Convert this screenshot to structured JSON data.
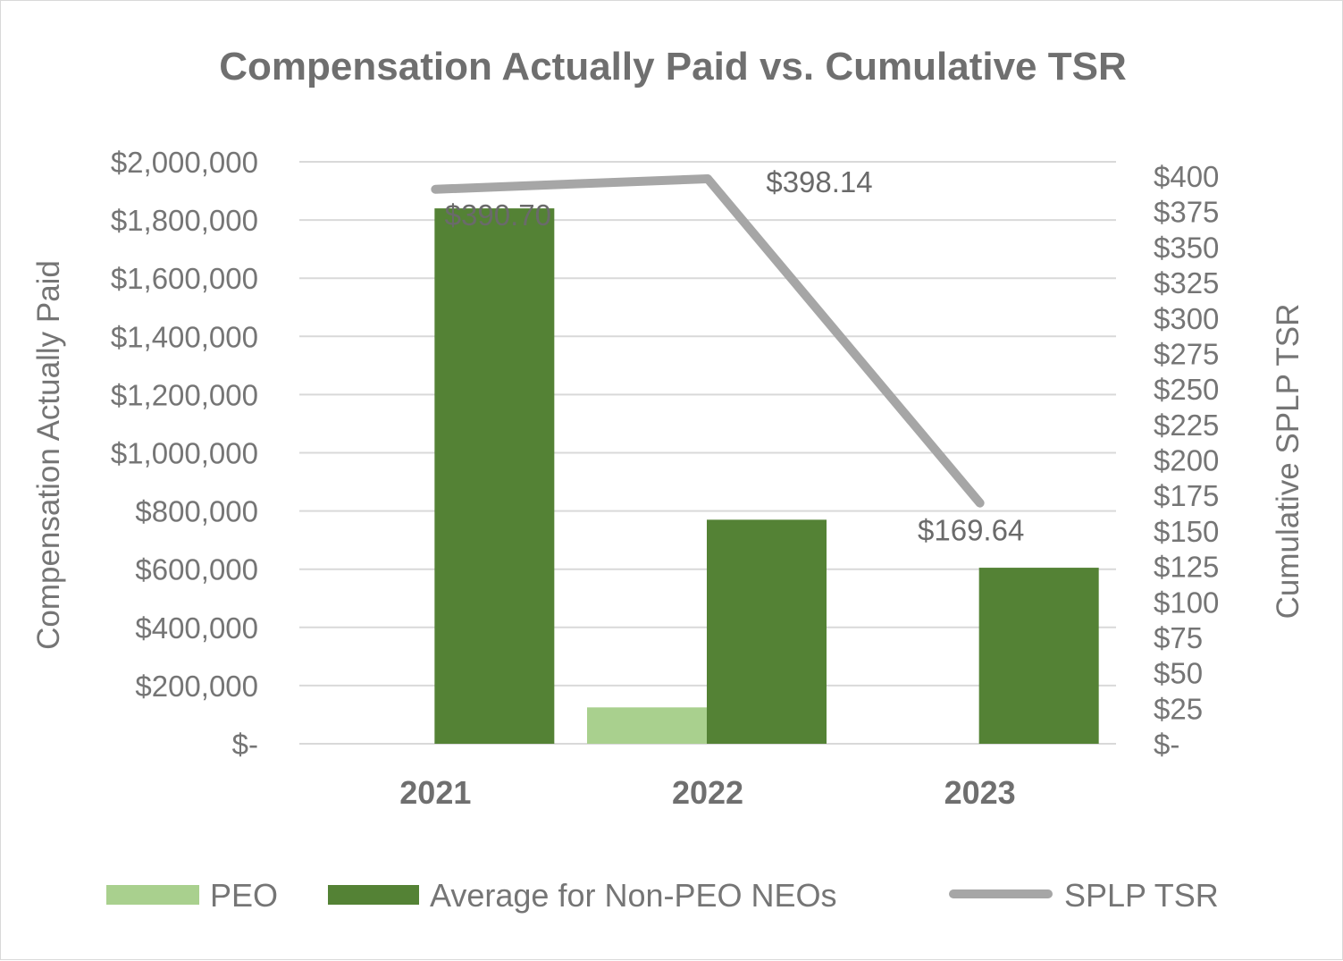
{
  "chart_data": {
    "type": "bar",
    "title": "Compensation Actually Paid vs. Cumulative TSR",
    "categories": [
      "2021",
      "2022",
      "2023"
    ],
    "ylabel": "Compensation Actually Paid",
    "y2label": "Cumulative SPLP TSR",
    "ylim": [
      0,
      2000000
    ],
    "y2lim": [
      0,
      400
    ],
    "y_ticks": [
      {
        "value": 0,
        "label": "$-"
      },
      {
        "value": 200000,
        "label": "$200,000"
      },
      {
        "value": 400000,
        "label": "$400,000"
      },
      {
        "value": 600000,
        "label": "$600,000"
      },
      {
        "value": 800000,
        "label": "$800,000"
      },
      {
        "value": 1000000,
        "label": "$1,000,000"
      },
      {
        "value": 1200000,
        "label": "$1,200,000"
      },
      {
        "value": 1400000,
        "label": "$1,400,000"
      },
      {
        "value": 1600000,
        "label": "$1,600,000"
      },
      {
        "value": 1800000,
        "label": "$1,800,000"
      },
      {
        "value": 2000000,
        "label": "$2,000,000"
      }
    ],
    "y2_ticks": [
      {
        "value": 0,
        "label": "$-"
      },
      {
        "value": 25,
        "label": "$25"
      },
      {
        "value": 50,
        "label": "$50"
      },
      {
        "value": 75,
        "label": "$75"
      },
      {
        "value": 100,
        "label": "$100"
      },
      {
        "value": 125,
        "label": "$125"
      },
      {
        "value": 150,
        "label": "$150"
      },
      {
        "value": 175,
        "label": "$175"
      },
      {
        "value": 200,
        "label": "$200"
      },
      {
        "value": 225,
        "label": "$225"
      },
      {
        "value": 250,
        "label": "$250"
      },
      {
        "value": 275,
        "label": "$275"
      },
      {
        "value": 300,
        "label": "$300"
      },
      {
        "value": 325,
        "label": "$325"
      },
      {
        "value": 350,
        "label": "$350"
      },
      {
        "value": 375,
        "label": "$375"
      },
      {
        "value": 400,
        "label": "$400"
      }
    ],
    "series": [
      {
        "name": "PEO",
        "type": "bar",
        "axis": "left",
        "color": "#a9d08e",
        "values": [
          0,
          125000,
          0
        ]
      },
      {
        "name": "Average for Non-PEO NEOs",
        "type": "bar",
        "axis": "left",
        "color": "#548235",
        "values": [
          1840000,
          770000,
          605000
        ]
      },
      {
        "name": "SPLP TSR",
        "type": "line",
        "axis": "right",
        "color": "#a6a6a6",
        "values": [
          390.7,
          398.14,
          169.64
        ],
        "labels": [
          "$390.70",
          "$398.14",
          "$169.64"
        ]
      }
    ],
    "grid": true,
    "legend": "bottom"
  }
}
